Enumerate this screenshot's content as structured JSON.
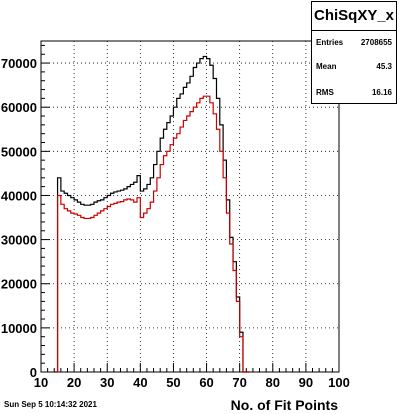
{
  "stats": {
    "title": "ChiSqXY_x",
    "rows": [
      {
        "label": "Entries",
        "value": "2708655"
      },
      {
        "label": "Mean",
        "value": "45.3"
      },
      {
        "label": "RMS",
        "value": "16.16"
      }
    ]
  },
  "footer": {
    "date": "Sun Sep  5 10:14:32 2021"
  },
  "colors": {
    "black_series": "#000000",
    "red_series": "#cc0000"
  },
  "chart_data": {
    "type": "line",
    "style": "step-histogram",
    "title": "",
    "xlabel": "No. of Fit Points",
    "ylabel": "",
    "xlim": [
      10,
      100
    ],
    "ylim": [
      0,
      75000
    ],
    "grid": true,
    "xticks": [
      10,
      20,
      30,
      40,
      50,
      60,
      70,
      80,
      90,
      100
    ],
    "yticks": [
      0,
      10000,
      20000,
      30000,
      40000,
      50000,
      60000,
      70000
    ],
    "x": [
      14,
      15,
      16,
      17,
      18,
      19,
      20,
      21,
      22,
      23,
      24,
      25,
      26,
      27,
      28,
      29,
      30,
      31,
      32,
      33,
      34,
      35,
      36,
      37,
      38,
      39,
      40,
      41,
      42,
      43,
      44,
      45,
      46,
      47,
      48,
      49,
      50,
      51,
      52,
      53,
      54,
      55,
      56,
      57,
      58,
      59,
      60,
      61,
      62,
      63,
      64,
      65,
      66,
      67,
      68,
      69,
      70,
      71,
      72
    ],
    "series": [
      {
        "values": [
          0,
          44000,
          41000,
          40500,
          40000,
          39500,
          39000,
          38500,
          38000,
          37800,
          37800,
          38000,
          38500,
          38800,
          39000,
          39500,
          40000,
          40500,
          40800,
          41000,
          41200,
          41500,
          42000,
          42500,
          43000,
          44500,
          41000,
          41500,
          42500,
          44000,
          47000,
          50000,
          53000,
          55000,
          56500,
          58000,
          60000,
          62000,
          63000,
          64500,
          65500,
          67000,
          69000,
          70000,
          71000,
          71500,
          71000,
          69500,
          66500,
          62000,
          56000,
          48000,
          39000,
          30500,
          25000,
          17000,
          9000,
          0,
          0
        ],
        "color": "#000000"
      },
      {
        "values": [
          0,
          40000,
          38000,
          37000,
          36500,
          36000,
          35800,
          35500,
          35000,
          34800,
          34800,
          35000,
          35500,
          36000,
          36500,
          37000,
          37500,
          38000,
          38200,
          38500,
          38600,
          39000,
          39200,
          39000,
          38500,
          39500,
          35000,
          36000,
          37000,
          38500,
          41000,
          44000,
          47000,
          49000,
          50000,
          51500,
          53000,
          54000,
          55500,
          57000,
          58000,
          59000,
          60000,
          61000,
          62000,
          62500,
          62500,
          61000,
          58500,
          55000,
          50000,
          44000,
          36000,
          29000,
          23000,
          16000,
          8000,
          0,
          0
        ],
        "color": "#cc0000"
      }
    ]
  }
}
